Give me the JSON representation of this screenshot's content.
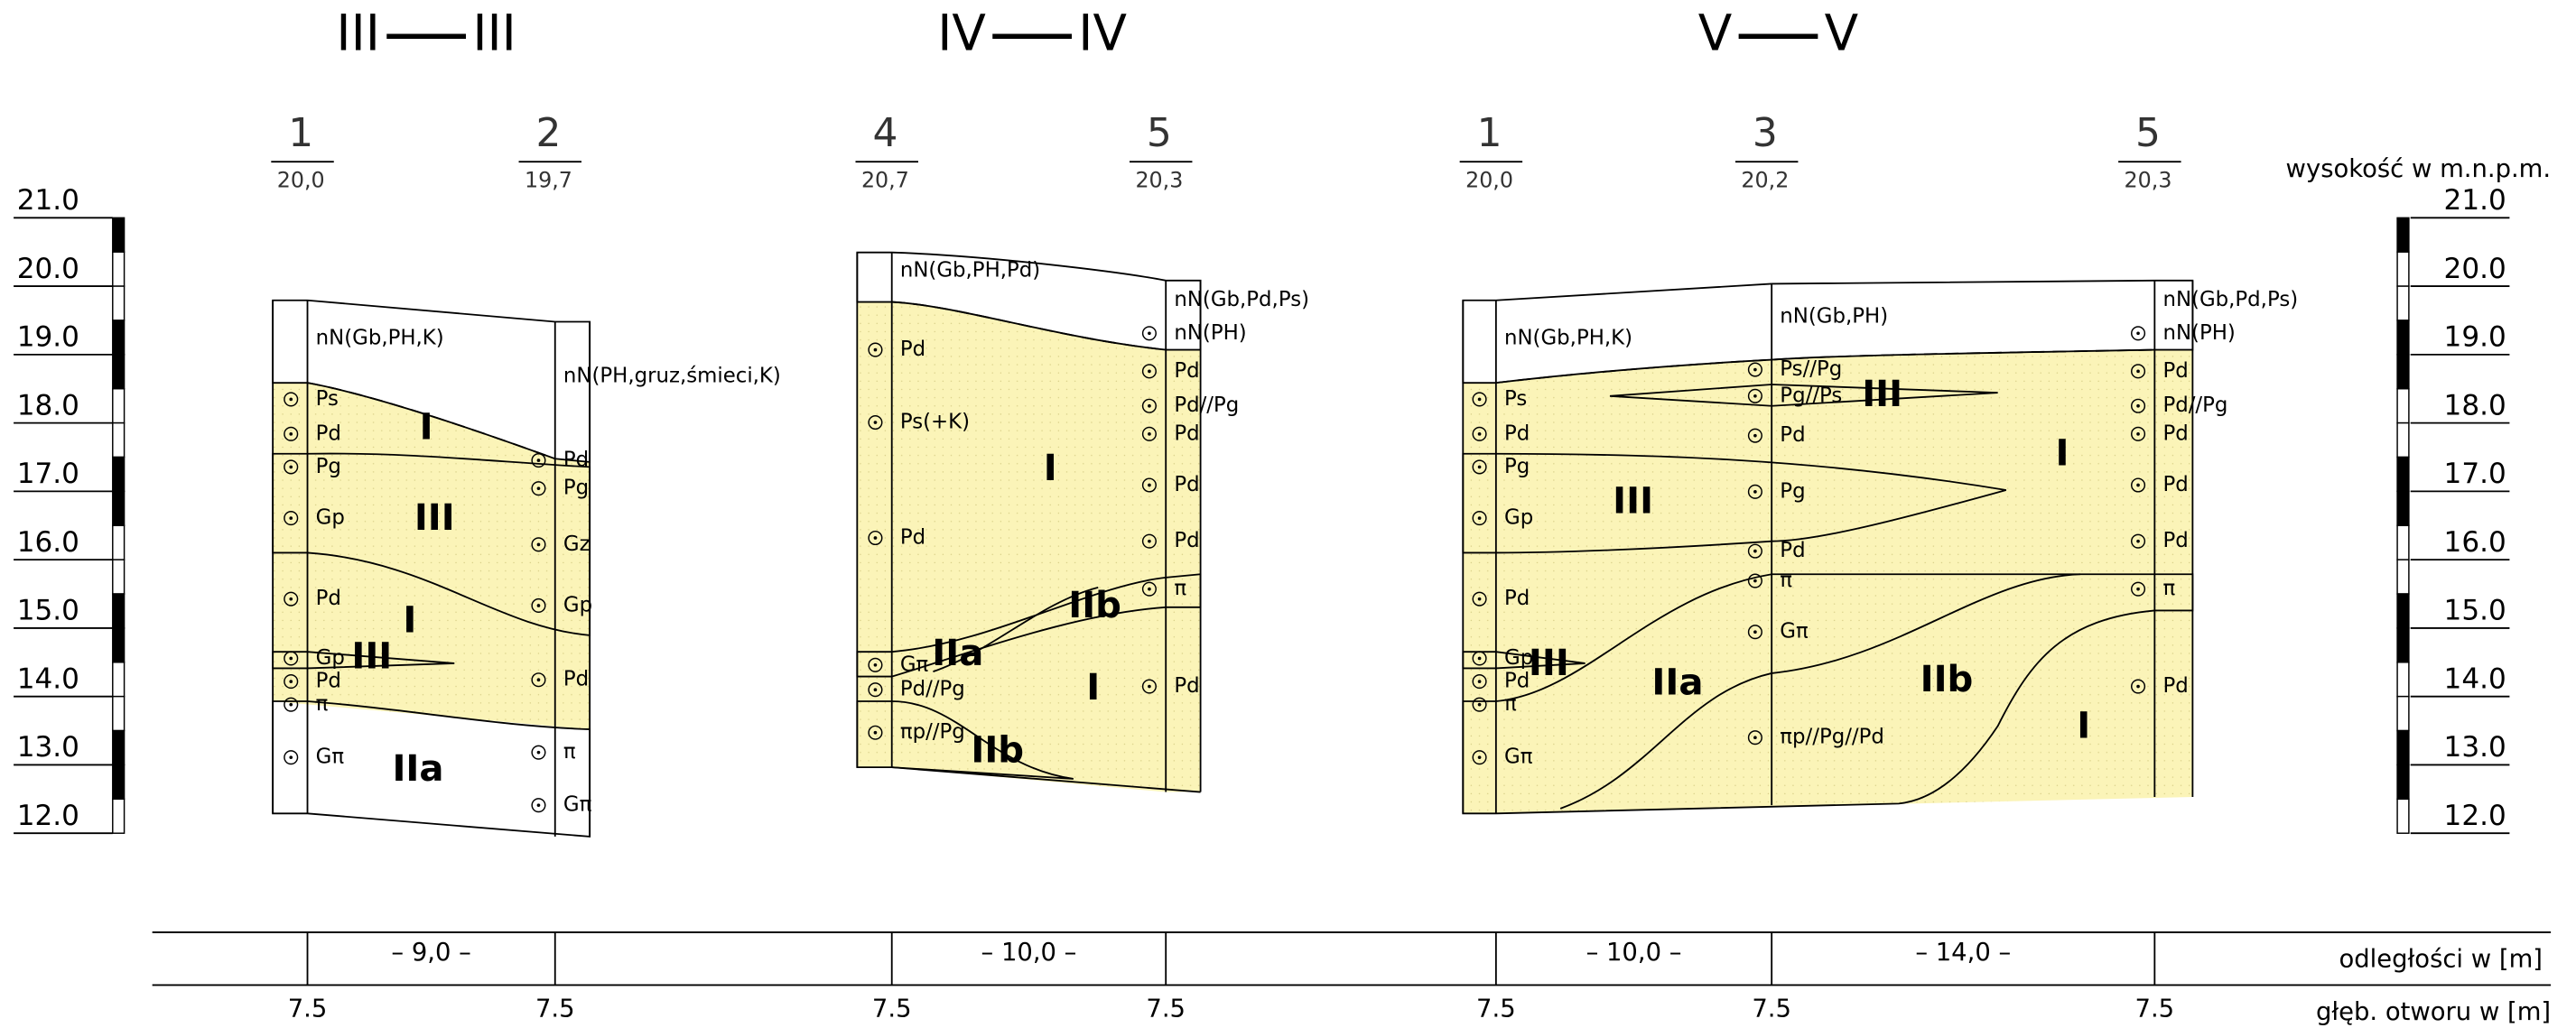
{
  "scale": {
    "label": "wysokość w m.n.p.m.",
    "ticks": [
      "21.0",
      "20.0",
      "19.0",
      "18.0",
      "17.0",
      "16.0",
      "15.0",
      "14.0",
      "13.0",
      "12.0"
    ]
  },
  "sections": [
    {
      "title": [
        "III",
        "III"
      ],
      "boreholes": [
        {
          "number": "1",
          "elevation": "20,0",
          "depth": "7.5",
          "soils": [
            "nN(Gb,PH,K)",
            "Ps",
            "Pd",
            "Pg",
            "Gp",
            "Pd",
            "Gp",
            "Pd",
            "π",
            "Gπ"
          ]
        },
        {
          "number": "2",
          "elevation": "19,7",
          "depth": "7.5",
          "soils": [
            "nN(PH,gruz,śmieci,K)",
            "Pd",
            "Pg",
            "Gz",
            "Gp",
            "Pd",
            "π",
            "Gπ"
          ]
        }
      ],
      "distances": [
        "– 9,0 –"
      ],
      "layers": [
        "I",
        "III",
        "I",
        "III",
        "IIa"
      ]
    },
    {
      "title": [
        "IV",
        "IV"
      ],
      "boreholes": [
        {
          "number": "4",
          "elevation": "20,7",
          "depth": "7.5",
          "soils": [
            "nN(Gb,PH,Pd)",
            "Pd",
            "Ps(+K)",
            "Pd",
            "Gπ",
            "Pd//Pg",
            "πp//Pg"
          ]
        },
        {
          "number": "5",
          "elevation": "20,3",
          "depth": "7.5",
          "soils": [
            "nN(Gb,Pd,Ps)",
            "nN(PH)",
            "Pd",
            "Pd//Pg",
            "Pd",
            "Pd",
            "Pd",
            "π",
            "Pd"
          ]
        }
      ],
      "distances": [
        "– 10,0 –"
      ],
      "layers": [
        "I",
        "IIb",
        "IIa",
        "I",
        "IIb"
      ]
    },
    {
      "title": [
        "V",
        "V"
      ],
      "boreholes": [
        {
          "number": "1",
          "elevation": "20,0",
          "depth": "7.5",
          "soils": [
            "nN(Gb,PH,K)",
            "Ps",
            "Pd",
            "Pg",
            "Gp",
            "Pd",
            "Gp",
            "Pd",
            "π",
            "Gπ"
          ]
        },
        {
          "number": "3",
          "elevation": "20,2",
          "depth": "7.5",
          "soils": [
            "nN(Gb,PH)",
            "Ps//Pg",
            "Pg//Ps",
            "Pd",
            "Pg",
            "Pd",
            "π",
            "Gπ",
            "πp//Pg//Pd"
          ]
        },
        {
          "number": "5",
          "elevation": "20,3",
          "depth": "7.5",
          "soils": [
            "nN(Gb,Pd,Ps)",
            "nN(PH)",
            "Pd",
            "Pd//Pg",
            "Pd",
            "Pd",
            "Pd",
            "π",
            "Pd"
          ]
        }
      ],
      "distances": [
        "– 10,0 –",
        "– 14,0 –"
      ],
      "layers": [
        "III",
        "I",
        "III",
        "III",
        "IIa",
        "IIb",
        "I"
      ]
    }
  ],
  "footer": {
    "distance_label": "odległości w [m]",
    "depth_label": "głęb. otworu w [m]"
  }
}
